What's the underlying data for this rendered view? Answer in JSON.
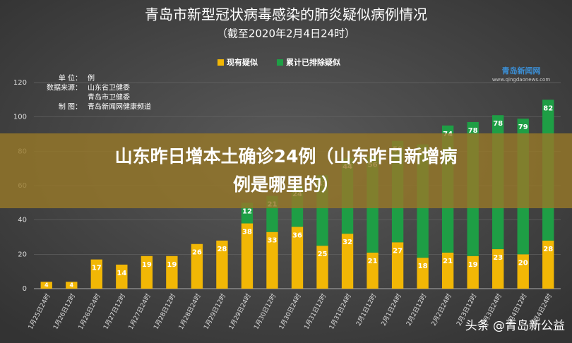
{
  "chart_data": {
    "type": "stacked_bar",
    "title": "青岛市新型冠状病毒感染的肺炎疑似病例情况",
    "subtitle": "（截至2020年2月4日24时）",
    "categories": [
      "1月25日24时",
      "1月26日12时",
      "1月26日24时",
      "1月27日12时",
      "1月27日24时",
      "1月28日12时",
      "1月28日24时",
      "1月29日12时",
      "1月29日24时",
      "1月30日12时",
      "1月30日24时",
      "1月31日12时",
      "1月31日24时",
      "2月1日12时",
      "2月1日24时",
      "2月2日12时",
      "2月2日24时",
      "2月3日12时",
      "2月3日24时",
      "2月4日12时",
      "2月4日24时"
    ],
    "series": [
      {
        "name": "现有疑似",
        "color": "#f2b705",
        "values": [
          4,
          4,
          17,
          14,
          19,
          19,
          26,
          28,
          38,
          33,
          36,
          25,
          32,
          21,
          27,
          18,
          21,
          19,
          23,
          20,
          28
        ]
      },
      {
        "name": "累计已排除疑似",
        "color": "#1e9e45",
        "values": [
          0,
          0,
          0,
          0,
          0,
          0,
          0,
          0,
          12,
          21,
          24,
          41,
          44,
          56,
          59,
          66,
          74,
          78,
          78,
          79,
          82
        ]
      }
    ],
    "ylim": [
      0,
      120
    ],
    "yticks": [
      0,
      20,
      40,
      60,
      80,
      100,
      120
    ],
    "grid": true
  },
  "info": [
    [
      "单 位：",
      "例"
    ],
    [
      "数据来源：",
      "山东省卫健委"
    ],
    [
      "",
      "青岛市卫健委"
    ],
    [
      "制 图：",
      "青岛新闻网健康频道"
    ]
  ],
  "logo": {
    "name": "青岛新闻网",
    "url": "www.qingdaonews.com"
  },
  "banner": "山东昨日增本土确诊24例（山东昨日新增病例是哪里的）",
  "watermark": "头条 @青岛新公益"
}
